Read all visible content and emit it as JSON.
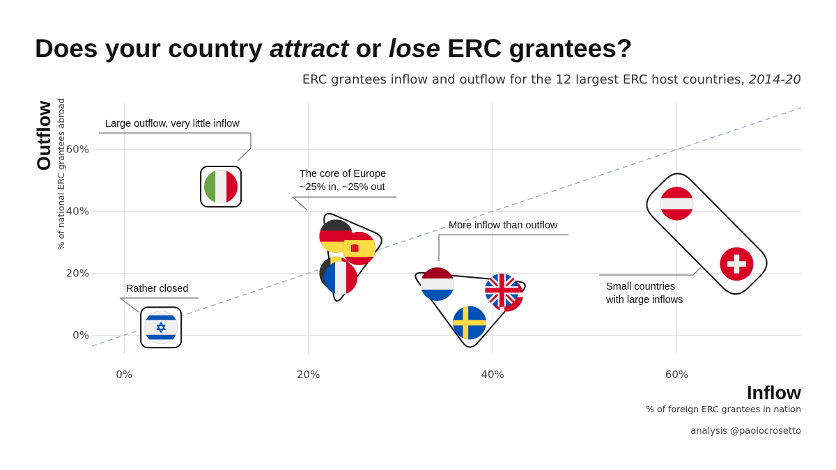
{
  "title_parts": {
    "p1": "Does your country ",
    "p2": "attract",
    "p3": " or ",
    "p4": "lose",
    "p5": " ERC grantees?"
  },
  "subtitle_parts": {
    "main": "ERC grantees inflow and outflow for the 12 largest ERC host countries, ",
    "years": "2014-20"
  },
  "caption": "analysis @paolocrosetto",
  "chart_data": {
    "type": "scatter",
    "title": "Does your country attract or lose ERC grantees?",
    "subtitle": "ERC grantees inflow and outflow for the 12 largest ERC host countries, 2014-20",
    "x_axis": {
      "title": "Inflow",
      "label": "% of foreign ERC grantees in nation",
      "ticks": [
        "0%",
        "20%",
        "40%",
        "60%"
      ],
      "tick_values": [
        0,
        20,
        40,
        60
      ],
      "range": [
        -3.5,
        73.5
      ]
    },
    "y_axis": {
      "title": "Outflow",
      "label": "% of national ERC grantees abroad",
      "ticks": [
        "0%",
        "20%",
        "40%",
        "60%"
      ],
      "tick_values": [
        0,
        20,
        40,
        60
      ],
      "range": [
        -6,
        75
      ]
    },
    "grid": true,
    "reference_line": {
      "type": "diagonal",
      "equation": "y = x",
      "style": "dashed",
      "color": "#aab0c2"
    },
    "points": [
      {
        "country": "Italy",
        "flag": "italy-flag",
        "x": 10.5,
        "y": 48
      },
      {
        "country": "Israel",
        "flag": "israel-flag",
        "x": 4,
        "y": 2.5
      },
      {
        "country": "Germany",
        "flag": "germany-flag",
        "x": 23,
        "y": 32
      },
      {
        "country": "Spain",
        "flag": "spain-flag",
        "x": 25.5,
        "y": 28
      },
      {
        "country": "Belgium",
        "flag": "belgium-flag",
        "x": 23,
        "y": 20
      },
      {
        "country": "France",
        "flag": "france-flag",
        "x": 23.5,
        "y": 18.5
      },
      {
        "country": "Netherlands",
        "flag": "netherlands-flag",
        "x": 34,
        "y": 16.5
      },
      {
        "country": "Denmark",
        "flag": "denmark-flag",
        "x": 41.5,
        "y": 13
      },
      {
        "country": "United Kingdom",
        "flag": "uk-flag",
        "x": 41,
        "y": 14.5
      },
      {
        "country": "Sweden",
        "flag": "sweden-flag",
        "x": 37.5,
        "y": 4
      },
      {
        "country": "Austria",
        "flag": "austria-flag",
        "x": 60,
        "y": 42.5
      },
      {
        "country": "Switzerland",
        "flag": "switzerland-flag",
        "x": 66.5,
        "y": 23
      }
    ],
    "annotations": [
      {
        "id": "italy",
        "lines": [
          "Large outflow, very little inflow"
        ]
      },
      {
        "id": "core",
        "lines": [
          "The core of Europe",
          "~25% in, ~25% out"
        ]
      },
      {
        "id": "more",
        "lines": [
          "More inflow than outflow"
        ]
      },
      {
        "id": "closed",
        "lines": [
          "Rather closed"
        ]
      },
      {
        "id": "small",
        "lines": [
          "Small countries",
          "with large inflows"
        ]
      }
    ]
  }
}
